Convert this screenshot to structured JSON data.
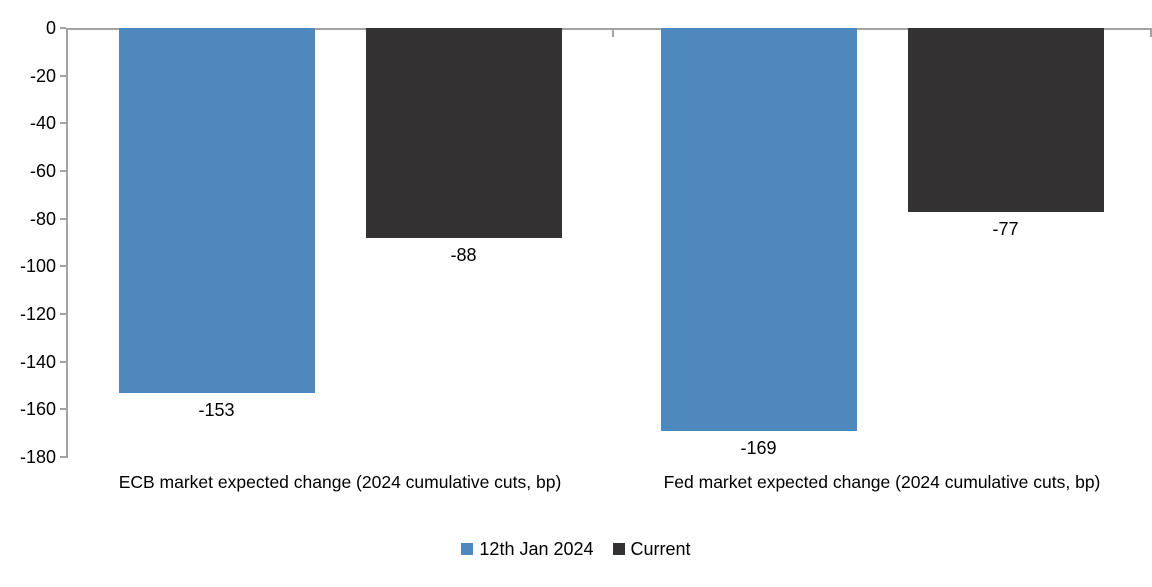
{
  "chart_data": {
    "type": "bar",
    "orientation": "vertical",
    "categories": [
      "ECB market expected change (2024 cumulative cuts, bp)",
      "Fed market expected change (2024 cumulative cuts, bp)"
    ],
    "series": [
      {
        "name": "12th Jan 2024",
        "color": "#4E88BC",
        "values": [
          -153,
          -169
        ]
      },
      {
        "name": "Current",
        "color": "#333132",
        "values": [
          -88,
          -77
        ]
      }
    ],
    "data_labels": [
      [
        "-153",
        "-169"
      ],
      [
        "-88",
        "-77"
      ]
    ],
    "title": "",
    "xlabel": "",
    "ylabel": "",
    "ylim": [
      -180,
      0
    ],
    "y_ticks": [
      0,
      -20,
      -40,
      -60,
      -80,
      -100,
      -120,
      -140,
      -160,
      -180
    ],
    "grid": false,
    "legend_position": "bottom",
    "axis_color": "#a3a3a3",
    "background_color": "#ffffff"
  }
}
